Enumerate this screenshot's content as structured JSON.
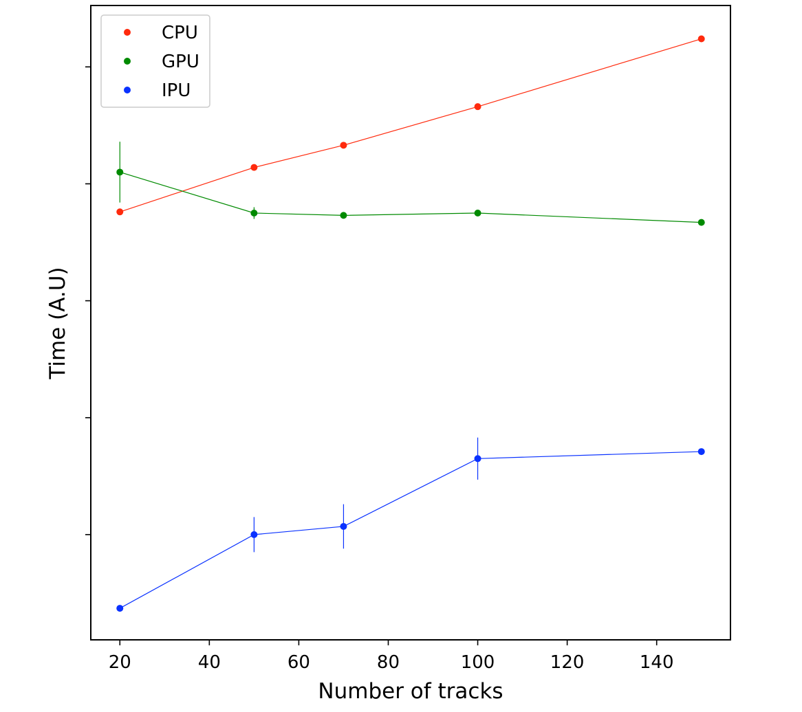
{
  "chart_data": {
    "type": "line",
    "xlabel": "Number of tracks",
    "ylabel": "Time (A.U)",
    "xlim": [
      13.5,
      156.5
    ],
    "ylim": [
      0,
      5.425
    ],
    "xticks": [
      20,
      40,
      60,
      80,
      100,
      120,
      140
    ],
    "yticks": [
      0.9,
      1.9,
      2.9,
      3.9,
      4.9
    ],
    "ytick_labels_visible": false,
    "legend_position": "top-left",
    "series": [
      {
        "name": "CPU",
        "color": "#ff2a0d",
        "x": [
          20,
          50,
          70,
          100,
          150
        ],
        "y": [
          3.66,
          4.04,
          4.23,
          4.56,
          5.14
        ],
        "yerr": [
          0.0,
          0.0,
          0.0,
          0.0,
          0.0
        ]
      },
      {
        "name": "GPU",
        "color": "#008a00",
        "x": [
          20,
          50,
          70,
          100,
          150
        ],
        "y": [
          4.0,
          3.65,
          3.63,
          3.65,
          3.57
        ],
        "yerr": [
          0.26,
          0.05,
          0.0,
          0.0,
          0.0
        ]
      },
      {
        "name": "IPU",
        "color": "#0a32ff",
        "x": [
          20,
          50,
          70,
          100,
          150
        ],
        "y": [
          0.27,
          0.9,
          0.97,
          1.55,
          1.61
        ],
        "yerr": [
          0.0,
          0.15,
          0.19,
          0.18,
          0.0
        ]
      }
    ]
  }
}
